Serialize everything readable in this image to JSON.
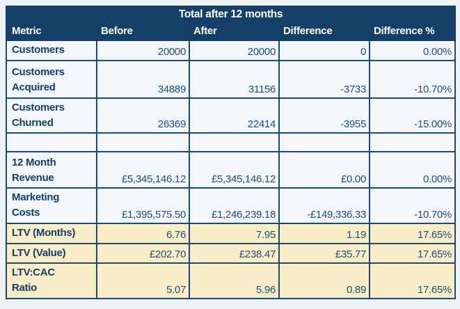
{
  "colors": {
    "page_background": "#edf1f6",
    "header_navy": "#133f68",
    "grid_border": "#1b4874",
    "row_light_blue": "#f3f7fb",
    "row_gold": "#f9edc8",
    "label_text": "#153e6b",
    "value_text": "#1f4d7e",
    "header_text": "#ffffff"
  },
  "table": {
    "title": "Total after 12 months",
    "columns": [
      "Metric",
      "Before",
      "After",
      "Difference",
      "Difference %"
    ],
    "rows": [
      {
        "theme": "blue",
        "metric": "Customers",
        "before": "20000",
        "after": "20000",
        "difference": "0",
        "difference_pct": "0.00%"
      },
      {
        "theme": "blue",
        "metric": "Customers\nAcquired",
        "before": "34889",
        "after": "31156",
        "difference": "-3733",
        "difference_pct": "-10.70%"
      },
      {
        "theme": "blue",
        "metric": "Customers\nChurned",
        "before": "26369",
        "after": "22414",
        "difference": "-3955",
        "difference_pct": "-15.00%"
      },
      {
        "theme": "blue",
        "metric": "",
        "before": "",
        "after": "",
        "difference": "",
        "difference_pct": ""
      },
      {
        "theme": "blue",
        "metric": "12 Month\nRevenue",
        "before": "£5,345,146.12",
        "after": "£5,345,146.12",
        "difference": "£0.00",
        "difference_pct": "0.00%"
      },
      {
        "theme": "blue",
        "metric": "Marketing\nCosts",
        "before": "£1,395,575.50",
        "after": "£1,246,239.18",
        "difference": "-£149,336.33",
        "difference_pct": "-10.70%"
      },
      {
        "theme": "gold",
        "metric": "LTV (Months)",
        "before": "6.76",
        "after": "7.95",
        "difference": "1.19",
        "difference_pct": "17.65%"
      },
      {
        "theme": "gold",
        "metric": "LTV (Value)",
        "before": "£202.70",
        "after": "£238.47",
        "difference": "£35.77",
        "difference_pct": "17.65%"
      },
      {
        "theme": "gold",
        "metric": "LTV:CAC Ratio",
        "before": "5.07",
        "after": "5.96",
        "difference": "0.89",
        "difference_pct": "17.65%"
      }
    ]
  }
}
